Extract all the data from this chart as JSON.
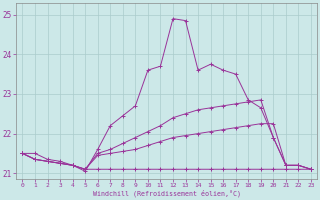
{
  "xlabel": "Windchill (Refroidissement éolien,°C)",
  "background_color": "#cce8e8",
  "line_color": "#993399",
  "xlim": [
    -0.5,
    23.5
  ],
  "ylim": [
    20.85,
    25.3
  ],
  "xticks": [
    0,
    1,
    2,
    3,
    4,
    5,
    6,
    7,
    8,
    9,
    10,
    11,
    12,
    13,
    14,
    15,
    16,
    17,
    18,
    19,
    20,
    21,
    22,
    23
  ],
  "yticks": [
    21,
    22,
    23,
    24,
    25
  ],
  "grid_color": "#aacccc",
  "series": [
    {
      "x": [
        0,
        1,
        2,
        3,
        4,
        5,
        6,
        7,
        8,
        9,
        10,
        11,
        12,
        13,
        14,
        15,
        16,
        17,
        18,
        19,
        20,
        21,
        22,
        23
      ],
      "y": [
        21.5,
        21.5,
        21.35,
        21.3,
        21.2,
        21.05,
        21.6,
        22.2,
        22.45,
        22.7,
        23.6,
        23.7,
        24.9,
        24.85,
        23.6,
        23.75,
        23.6,
        23.5,
        22.85,
        22.65,
        21.9,
        21.2,
        21.2,
        21.1
      ]
    },
    {
      "x": [
        0,
        1,
        2,
        3,
        4,
        5,
        6,
        7,
        8,
        9,
        10,
        11,
        12,
        13,
        14,
        15,
        16,
        17,
        18,
        19,
        20,
        21,
        22,
        23
      ],
      "y": [
        21.5,
        21.35,
        21.3,
        21.25,
        21.2,
        21.1,
        21.5,
        21.6,
        21.75,
        21.9,
        22.05,
        22.2,
        22.4,
        22.5,
        22.6,
        22.65,
        22.7,
        22.75,
        22.8,
        22.85,
        21.9,
        21.2,
        21.2,
        21.1
      ]
    },
    {
      "x": [
        0,
        1,
        2,
        3,
        4,
        5,
        6,
        7,
        8,
        9,
        10,
        11,
        12,
        13,
        14,
        15,
        16,
        17,
        18,
        19,
        20,
        21,
        22,
        23
      ],
      "y": [
        21.5,
        21.35,
        21.3,
        21.25,
        21.2,
        21.1,
        21.45,
        21.5,
        21.55,
        21.6,
        21.7,
        21.8,
        21.9,
        21.95,
        22.0,
        22.05,
        22.1,
        22.15,
        22.2,
        22.25,
        22.25,
        21.2,
        21.2,
        21.1
      ]
    },
    {
      "x": [
        0,
        1,
        2,
        3,
        4,
        5,
        6,
        7,
        8,
        9,
        10,
        11,
        12,
        13,
        14,
        15,
        16,
        17,
        18,
        19,
        20,
        21,
        22,
        23
      ],
      "y": [
        21.5,
        21.35,
        21.3,
        21.25,
        21.2,
        21.1,
        21.1,
        21.1,
        21.1,
        21.1,
        21.1,
        21.1,
        21.1,
        21.1,
        21.1,
        21.1,
        21.1,
        21.1,
        21.1,
        21.1,
        21.1,
        21.1,
        21.1,
        21.1
      ]
    }
  ]
}
